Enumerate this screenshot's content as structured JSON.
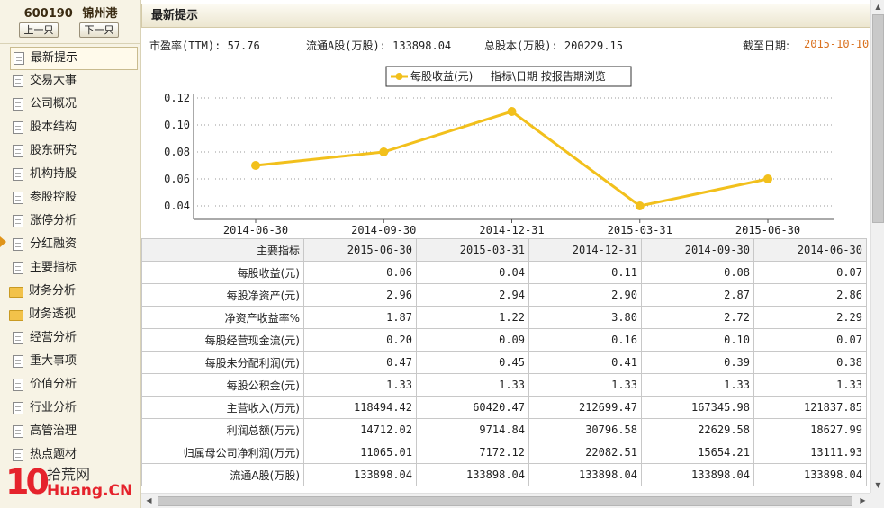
{
  "stock": {
    "code": "600190",
    "name": "锦州港"
  },
  "nav_buttons": {
    "prev": "上一只",
    "next": "下一只"
  },
  "sidebar": {
    "items": [
      {
        "label": "最新提示",
        "icon": "document-icon",
        "active": true
      },
      {
        "label": "交易大事",
        "icon": "document-icon"
      },
      {
        "label": "公司概况",
        "icon": "document-icon"
      },
      {
        "label": "股本结构",
        "icon": "document-icon"
      },
      {
        "label": "股东研究",
        "icon": "document-icon"
      },
      {
        "label": "机构持股",
        "icon": "document-icon"
      },
      {
        "label": "参股控股",
        "icon": "document-icon"
      },
      {
        "label": "涨停分析",
        "icon": "document-icon"
      },
      {
        "label": "分红融资",
        "icon": "document-icon"
      },
      {
        "label": "主要指标",
        "icon": "document-icon"
      },
      {
        "label": "财务分析",
        "icon": "folder-icon"
      },
      {
        "label": "财务透视",
        "icon": "folder-icon"
      },
      {
        "label": "经营分析",
        "icon": "document-icon"
      },
      {
        "label": "重大事项",
        "icon": "document-icon"
      },
      {
        "label": "价值分析",
        "icon": "document-icon"
      },
      {
        "label": "行业分析",
        "icon": "document-icon"
      },
      {
        "label": "高管治理",
        "icon": "document-icon"
      },
      {
        "label": "热点题材",
        "icon": "document-icon"
      }
    ]
  },
  "watermark": {
    "ten": "10",
    "site": "拾荒网",
    "domain": "Huang.CN"
  },
  "section": {
    "title": "最新提示"
  },
  "stats": {
    "pe": "市盈率(TTM): 57.76",
    "float_shares": "流通A股(万股): 133898.04",
    "total_shares": "总股本(万股): 200229.15",
    "as_of_label": "截至日期:",
    "as_of_date": "2015-10-10"
  },
  "chart_data": {
    "type": "line",
    "x": [
      "2014-06-30",
      "2014-09-30",
      "2014-12-31",
      "2015-03-31",
      "2015-06-30"
    ],
    "series": [
      {
        "name": "每股收益(元)",
        "values": [
          0.07,
          0.08,
          0.11,
          0.04,
          0.06
        ],
        "color": "#f2c01c"
      }
    ],
    "legend_extra": "指标\\日期   按报告期浏览",
    "legend_position": "top-center",
    "yticks": [
      "0.12",
      "0.10",
      "0.08",
      "0.06",
      "0.04"
    ],
    "ylim": [
      0.03,
      0.12
    ],
    "grid": true
  },
  "table": {
    "header": [
      "主要指标",
      "2015-06-30",
      "2015-03-31",
      "2014-12-31",
      "2014-09-30",
      "2014-06-30"
    ],
    "rows": [
      [
        "每股收益(元)",
        "0.06",
        "0.04",
        "0.11",
        "0.08",
        "0.07"
      ],
      [
        "每股净资产(元)",
        "2.96",
        "2.94",
        "2.90",
        "2.87",
        "2.86"
      ],
      [
        "净资产收益率%",
        "1.87",
        "1.22",
        "3.80",
        "2.72",
        "2.29"
      ],
      [
        "每股经营现金流(元)",
        "0.20",
        "0.09",
        "0.16",
        "0.10",
        "0.07"
      ],
      [
        "每股未分配利润(元)",
        "0.47",
        "0.45",
        "0.41",
        "0.39",
        "0.38"
      ],
      [
        "每股公积金(元)",
        "1.33",
        "1.33",
        "1.33",
        "1.33",
        "1.33"
      ],
      [
        "主营收入(万元)",
        "118494.42",
        "60420.47",
        "212699.47",
        "167345.98",
        "121837.85"
      ],
      [
        "利润总额(万元)",
        "14712.02",
        "9714.84",
        "30796.58",
        "22629.58",
        "18627.99"
      ],
      [
        "归属母公司净利润(万元)",
        "11065.01",
        "7172.12",
        "22082.51",
        "15654.21",
        "13111.93"
      ],
      [
        "流通A股(万股)",
        "133898.04",
        "133898.04",
        "133898.04",
        "133898.04",
        "133898.04"
      ]
    ]
  },
  "scroll_arrows": {
    "up": "▲",
    "down": "▼",
    "left": "◀",
    "right": "▶"
  }
}
